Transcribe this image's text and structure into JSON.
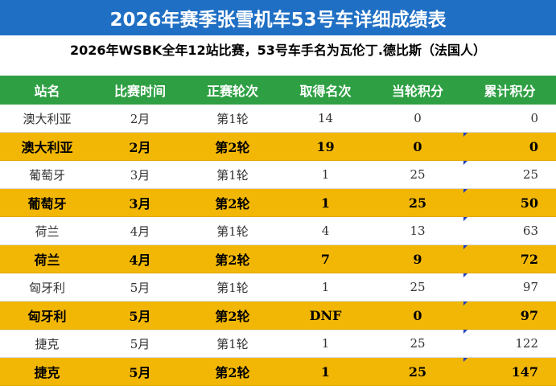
{
  "title": "2026年赛季张雪机车53号车详细成绩表",
  "subtitle": "2026年WSBK全年12站比赛，53号车手名为瓦伦丁.德比斯（法国人）",
  "colors": {
    "title_bg": "#1f6fc4",
    "header_bg": "#2ea043",
    "highlight_row": "#f2b705"
  },
  "table": {
    "headers": [
      "站名",
      "比赛时间",
      "正赛轮次",
      "取得名次",
      "当轮积分",
      "累计积分"
    ],
    "rows": [
      [
        "澳大利亚",
        "2月",
        "第1轮",
        "14",
        "0",
        "0"
      ],
      [
        "澳大利亚",
        "2月",
        "第2轮",
        "19",
        "0",
        "0"
      ],
      [
        "葡萄牙",
        "3月",
        "第1轮",
        "1",
        "25",
        "25"
      ],
      [
        "葡萄牙",
        "3月",
        "第2轮",
        "1",
        "25",
        "50"
      ],
      [
        "荷兰",
        "4月",
        "第1轮",
        "4",
        "13",
        "63"
      ],
      [
        "荷兰",
        "4月",
        "第2轮",
        "7",
        "9",
        "72"
      ],
      [
        "匈牙利",
        "5月",
        "第1轮",
        "1",
        "25",
        "97"
      ],
      [
        "匈牙利",
        "5月",
        "第2轮",
        "DNF",
        "0",
        "97"
      ],
      [
        "捷克",
        "5月",
        "第1轮",
        "1",
        "25",
        "122"
      ],
      [
        "捷克",
        "5月",
        "第2轮",
        "1",
        "25",
        "147"
      ]
    ]
  }
}
